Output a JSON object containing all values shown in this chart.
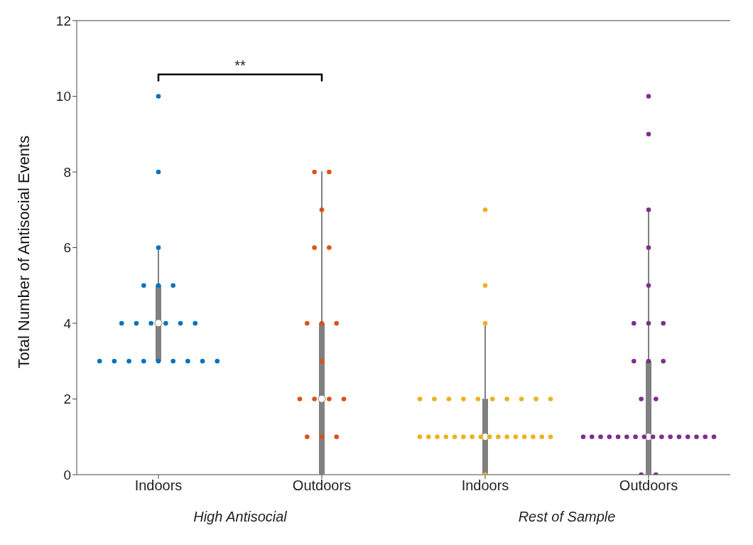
{
  "chart_data": [
    {
      "type": "box",
      "ylabel": "Total Number of Antisocial Events",
      "xlabel": "High Antisocial",
      "categories": [
        "Indoors",
        "Outdoors"
      ],
      "ylim": [
        0,
        12
      ],
      "yticks": [
        0,
        2,
        4,
        6,
        8,
        10,
        12
      ],
      "boxes": [
        {
          "low": 3,
          "q1": 3,
          "median": 4,
          "q3": 5,
          "high": 6
        },
        {
          "low": 0,
          "q1": 0,
          "median": 2,
          "q3": 4,
          "high": 8
        }
      ],
      "series": [
        {
          "type": "scatter",
          "color": "#0072bd",
          "x": [
            "Indoors",
            "Indoors",
            "Indoors",
            "Indoors",
            "Indoors",
            "Indoors",
            "Indoors",
            "Indoors",
            "Indoors",
            "Indoors",
            "Indoors",
            "Indoors",
            "Indoors",
            "Indoors",
            "Indoors",
            "Indoors",
            "Indoors",
            "Indoors",
            "Indoors",
            "Indoors",
            "Indoors"
          ],
          "values": [
            10,
            8,
            6,
            5,
            5,
            5,
            4,
            4,
            4,
            4,
            4,
            4,
            3,
            3,
            3,
            3,
            3,
            3,
            3,
            3,
            3
          ]
        },
        {
          "type": "scatter",
          "color": "#d95319",
          "x": [
            "Outdoors",
            "Outdoors",
            "Outdoors",
            "Outdoors",
            "Outdoors",
            "Outdoors",
            "Outdoors",
            "Outdoors",
            "Outdoors",
            "Outdoors",
            "Outdoors",
            "Outdoors",
            "Outdoors",
            "Outdoors",
            "Outdoors",
            "Outdoors"
          ],
          "values": [
            8,
            8,
            7,
            6,
            6,
            4,
            4,
            4,
            3,
            2,
            2,
            2,
            2,
            1,
            1,
            1
          ]
        }
      ],
      "marker": "circle",
      "annotations": [
        "**"
      ]
    },
    {
      "type": "box",
      "xlabel": "Rest of Sample",
      "categories": [
        "Indoors",
        "Outdoors"
      ],
      "ylim": [
        0,
        12
      ],
      "yticks": [
        0,
        2,
        4,
        6,
        8,
        10,
        12
      ],
      "tick_labels": "x",
      "boxes": [
        {
          "low": 0,
          "q1": 0,
          "median": 1,
          "q3": 2,
          "high": 4
        },
        {
          "low": 0,
          "q1": 0,
          "median": 1,
          "q3": 3,
          "high": 7
        }
      ],
      "series": [
        {
          "type": "scatter",
          "color": "#edb120",
          "x": [
            "Indoors",
            "Indoors",
            "Indoors",
            "Indoors",
            "Indoors",
            "Indoors",
            "Indoors",
            "Indoors",
            "Indoors",
            "Indoors",
            "Indoors",
            "Indoors",
            "Indoors",
            "Indoors",
            "Indoors",
            "Indoors",
            "Indoors",
            "Indoors",
            "Indoors",
            "Indoors",
            "Indoors",
            "Indoors",
            "Indoors",
            "Indoors",
            "Indoors",
            "Indoors",
            "Indoors",
            "Indoors",
            "Indoors",
            "Indoors"
          ],
          "values": [
            7,
            5,
            4,
            2,
            2,
            2,
            2,
            2,
            2,
            2,
            2,
            2,
            2,
            1,
            1,
            1,
            1,
            1,
            1,
            1,
            1,
            1,
            1,
            1,
            1,
            1,
            1,
            1,
            1,
            0
          ]
        },
        {
          "type": "scatter",
          "color": "#7e2f8e",
          "x": [
            "Outdoors",
            "Outdoors",
            "Outdoors",
            "Outdoors",
            "Outdoors",
            "Outdoors",
            "Outdoors",
            "Outdoors",
            "Outdoors",
            "Outdoors",
            "Outdoors",
            "Outdoors",
            "Outdoors",
            "Outdoors",
            "Outdoors",
            "Outdoors",
            "Outdoors",
            "Outdoors",
            "Outdoors",
            "Outdoors",
            "Outdoors",
            "Outdoors",
            "Outdoors",
            "Outdoors",
            "Outdoors",
            "Outdoors",
            "Outdoors",
            "Outdoors",
            "Outdoors",
            "Outdoors",
            "Outdoors"
          ],
          "values": [
            10,
            9,
            7,
            6,
            5,
            4,
            4,
            4,
            3,
            3,
            3,
            2,
            2,
            1,
            1,
            1,
            1,
            1,
            1,
            1,
            1,
            1,
            1,
            1,
            1,
            1,
            1,
            1,
            1,
            0,
            0
          ]
        }
      ],
      "marker": "circle"
    }
  ]
}
